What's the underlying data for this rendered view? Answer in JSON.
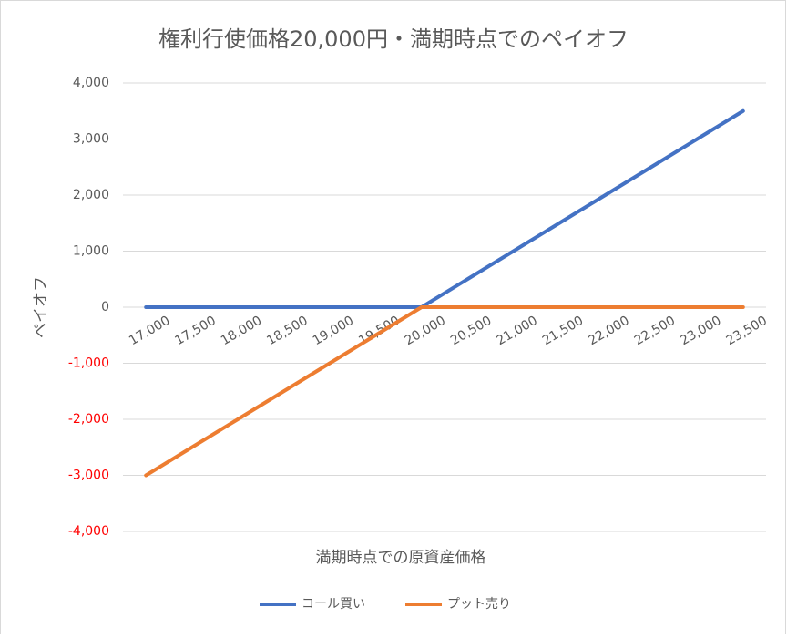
{
  "chart_data": {
    "type": "line",
    "title": "権利行使価格20,000円・満期時点でのペイオフ",
    "x_label": "満期時点での原資産価格",
    "y_label": "ペイオフ",
    "categories": [
      "17,000",
      "17,500",
      "18,000",
      "18,500",
      "19,000",
      "19,500",
      "20,000",
      "20,500",
      "21,000",
      "21,500",
      "22,000",
      "22,500",
      "23,000",
      "23,500"
    ],
    "series": [
      {
        "name": "コール買い",
        "color": "#4472c4",
        "values": [
          0,
          0,
          0,
          0,
          0,
          0,
          0,
          500,
          1000,
          1500,
          2000,
          2500,
          3000,
          3500
        ]
      },
      {
        "name": "プット売り",
        "color": "#ed7d31",
        "values": [
          -3000,
          -2500,
          -2000,
          -1500,
          -1000,
          -500,
          0,
          0,
          0,
          0,
          0,
          0,
          0,
          0
        ]
      }
    ],
    "ylim": [
      -4000,
      4000
    ],
    "yticks": [
      {
        "value": -4000,
        "label": "-4,000"
      },
      {
        "value": -3000,
        "label": "-3,000"
      },
      {
        "value": -2000,
        "label": "-2,000"
      },
      {
        "value": -1000,
        "label": "-1,000"
      },
      0,
      {
        "value": 1000,
        "label": "1,000"
      },
      {
        "value": 2000,
        "label": "2,000"
      },
      {
        "value": 3000,
        "label": "3,000"
      },
      {
        "value": 4000,
        "label": "4,000"
      }
    ],
    "negative_tick_color": "#ff0000",
    "grid": true,
    "legend": "bottom"
  }
}
